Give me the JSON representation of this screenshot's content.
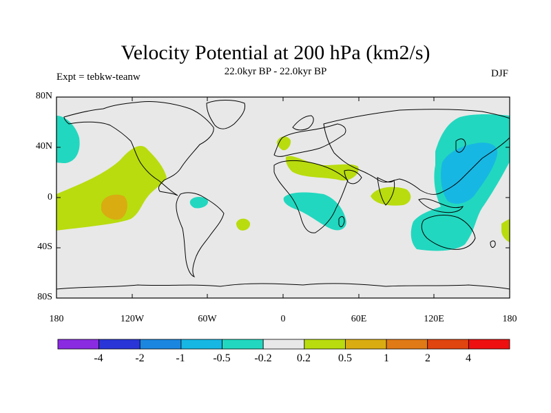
{
  "title": "Velocity Potential at 200 hPa (km2/s)",
  "subtitle": "22.0kyr BP - 22.0kyr BP",
  "left_label": "Expt = tebkw-teanw",
  "right_label": "DJF",
  "y_ticks": [
    "80N",
    "40N",
    "0",
    "40S",
    "80S"
  ],
  "x_ticks": [
    "180",
    "120W",
    "60W",
    "0",
    "60E",
    "120E",
    "180"
  ],
  "colorbar": {
    "labels": [
      "-4",
      "-2",
      "-1",
      "-0.5",
      "-0.2",
      "0.2",
      "0.5",
      "1",
      "2",
      "4"
    ],
    "colors": [
      "#8a2be2",
      "#2a35d8",
      "#1b86e0",
      "#17b7e3",
      "#22d7bf",
      "#e8e8e8",
      "#b8dc0e",
      "#d9ac12",
      "#e07a16",
      "#e0440f",
      "#ee1010"
    ]
  },
  "colors": {
    "background": "#e8e8e8",
    "positive_light": "#b8dc0e",
    "positive_mid": "#d9ac12",
    "negative_light": "#22d7bf",
    "negative_mid": "#17b7e3"
  }
}
